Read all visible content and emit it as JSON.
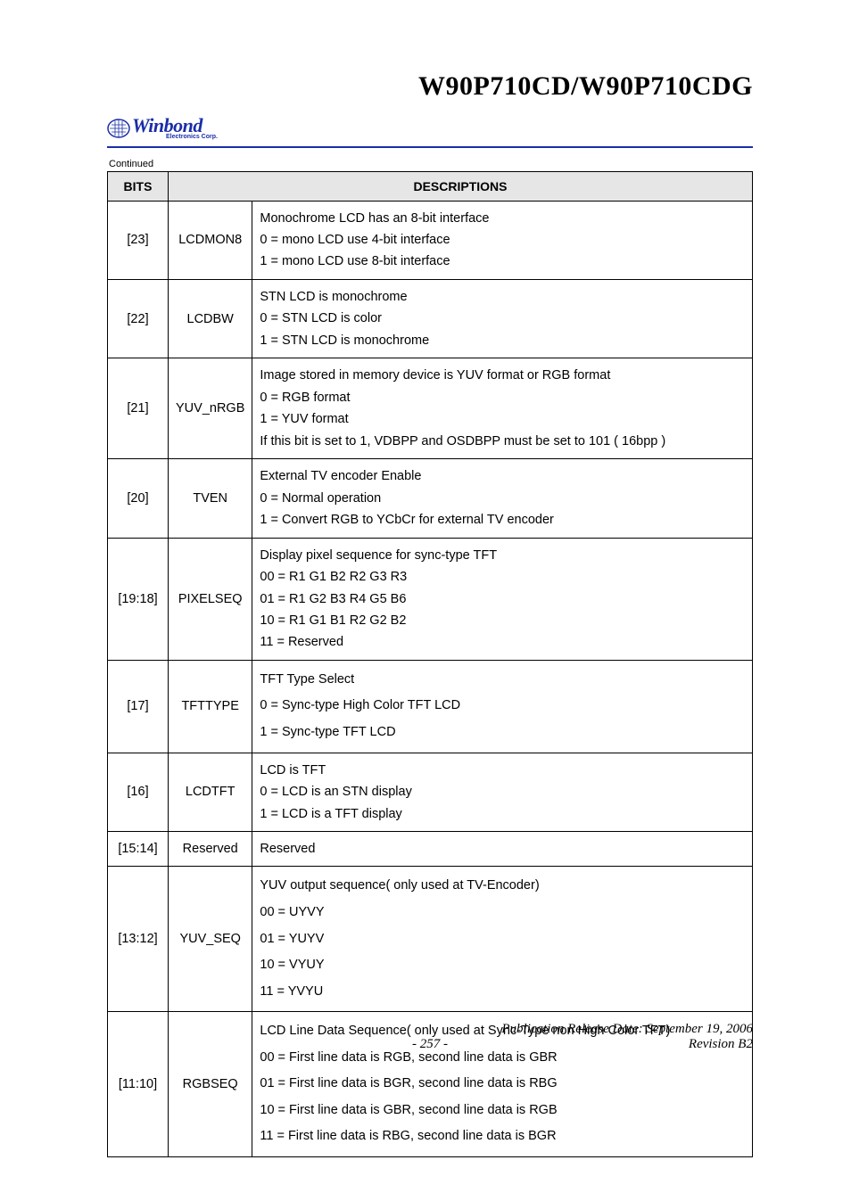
{
  "title": "W90P710CD/W90P710CDG",
  "logo": {
    "main": "Winbond",
    "sub": "Electronics Corp."
  },
  "continued_label": "Continued",
  "table": {
    "headers": [
      "BITS",
      "DESCRIPTIONS"
    ],
    "header_colspan": [
      1,
      2
    ],
    "rows": [
      {
        "bits": "[23]",
        "name": "LCDMON8",
        "desc": [
          "Monochrome LCD has an 8-bit interface",
          "0 = mono LCD use 4-bit interface",
          "1 = mono LCD use 8-bit interface"
        ]
      },
      {
        "bits": "[22]",
        "name": "LCDBW",
        "desc": [
          "STN LCD is monochrome",
          "0 = STN LCD is color",
          "1 = STN LCD is monochrome"
        ]
      },
      {
        "bits": "[21]",
        "name": "YUV_nRGB",
        "desc": [
          "Image stored in memory device is YUV format or RGB format",
          "0 = RGB format",
          "1 = YUV format",
          "If this bit is set to 1, VDBPP and OSDBPP must be set to 101 ( 16bpp )"
        ]
      },
      {
        "bits": "[20]",
        "name": "TVEN",
        "desc": [
          "External TV encoder Enable",
          "0 = Normal operation",
          "1 = Convert RGB to YCbCr for external TV encoder"
        ]
      },
      {
        "bits": "[19:18]",
        "name": "PIXELSEQ",
        "desc": [
          "Display pixel sequence for sync-type TFT",
          "00 = R1 G1 B2 R2 G3 R3",
          "01 = R1 G2 B3 R4 G5 B6",
          "10 = R1 G1 B1 R2 G2 B2",
          "11 = Reserved"
        ]
      },
      {
        "bits": "[17]",
        "name": "TFTTYPE",
        "spaced": true,
        "desc": [
          "TFT Type Select",
          "0 = Sync-type High Color TFT LCD",
          "1 = Sync-type TFT LCD"
        ]
      },
      {
        "bits": "[16]",
        "name": "LCDTFT",
        "desc": [
          "LCD is TFT",
          "0 = LCD is an STN display",
          "1 = LCD is a TFT display"
        ]
      },
      {
        "bits": "[15:14]",
        "name": "Reserved",
        "desc": [
          "Reserved"
        ]
      },
      {
        "bits": "[13:12]",
        "name": "YUV_SEQ",
        "spaced": true,
        "desc": [
          "YUV output sequence( only used at TV-Encoder)",
          "00 = UYVY",
          "01 = YUYV",
          "10 = VYUY",
          "11 = YVYU"
        ]
      },
      {
        "bits": "[11:10]",
        "name": "RGBSEQ",
        "spaced": true,
        "desc": [
          "LCD Line Data Sequence( only used at Sync-Type non High Color TFT)",
          "00 = First line data is RGB, second line data is GBR",
          "01 = First line data is BGR, second line data is RBG",
          "10 = First line data is GBR, second line data is RGB",
          "11 = First line data is RBG, second line data is BGR"
        ]
      }
    ]
  },
  "footer": {
    "pub": "Publication Release Date: September 19, 2006",
    "page": "- 257 -",
    "rev": "Revision B2"
  },
  "colors": {
    "brand_blue": "#1a2ea8",
    "header_bg": "#e6e6e6",
    "border": "#000000",
    "text": "#000000"
  }
}
